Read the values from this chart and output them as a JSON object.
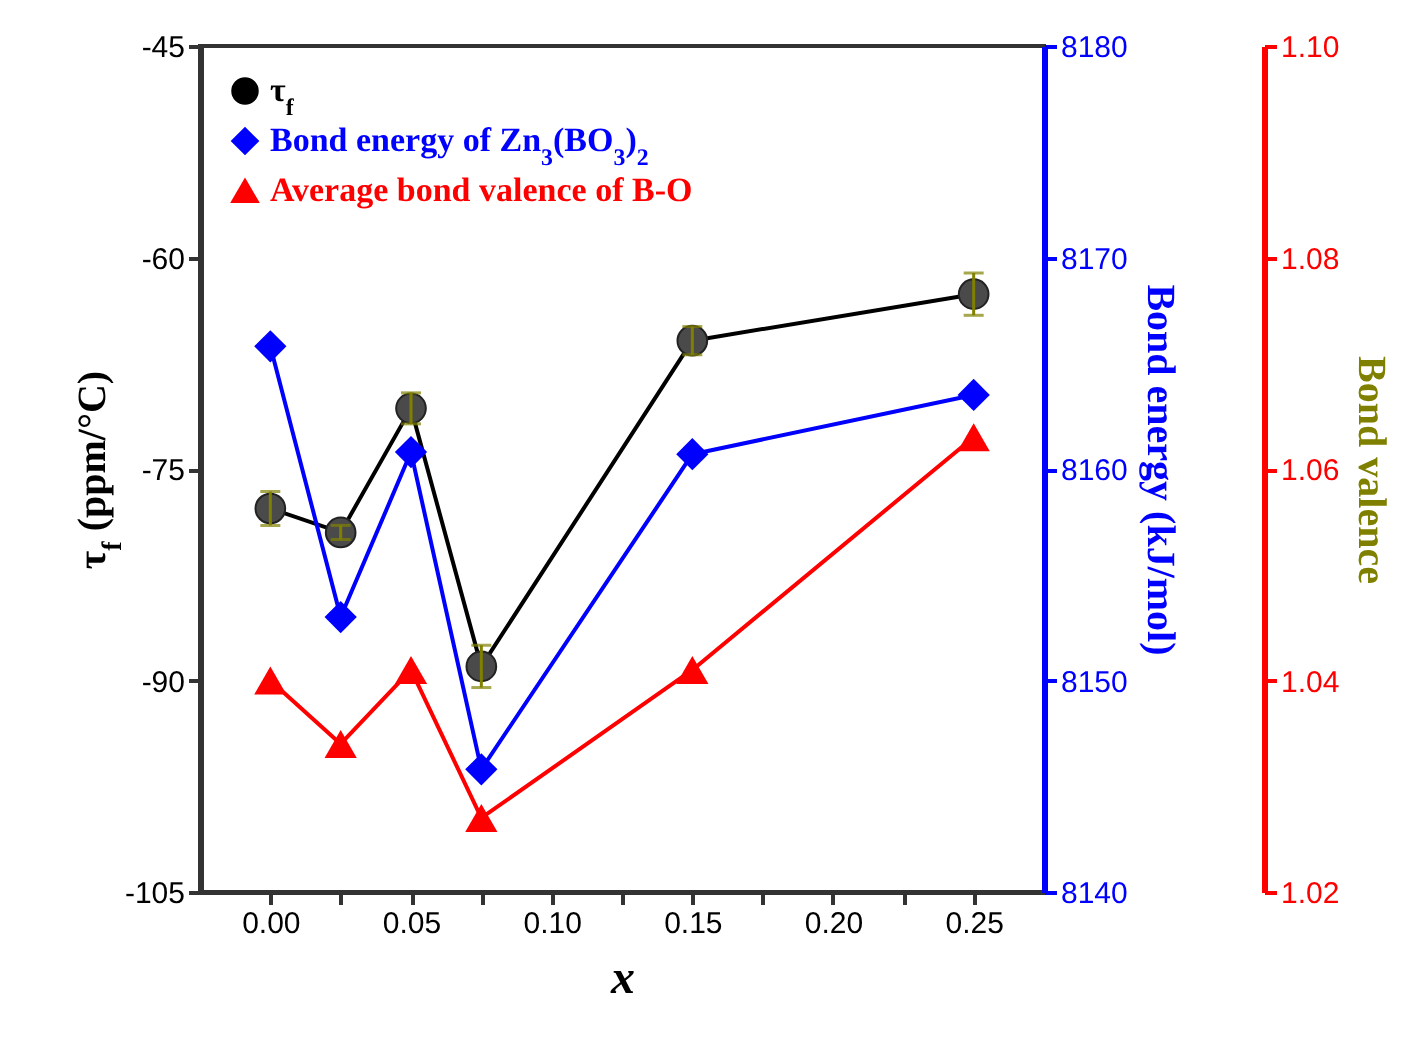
{
  "chart_data": {
    "type": "line",
    "xlabel": "x",
    "ylabel": "τ$_{f}$ (ppm/°C)",
    "y2label": "Bond energy (kJ/mol)",
    "y3label": "Bond valence",
    "x": [
      0,
      0.025,
      0.05,
      0.075,
      0.15,
      0.25
    ],
    "xlim": [
      -0.025,
      0.275
    ],
    "xticks": [
      {
        "value": 0,
        "label": "0.00"
      },
      {
        "value": 0.025,
        "label": null
      },
      {
        "value": 0.05,
        "label": "0.05"
      },
      {
        "value": 0.075,
        "label": null
      },
      {
        "value": 0.1,
        "label": "0.10"
      },
      {
        "value": 0.125,
        "label": null
      },
      {
        "value": 0.15,
        "label": "0.15"
      },
      {
        "value": 0.175,
        "label": null
      },
      {
        "value": 0.2,
        "label": "0.20"
      },
      {
        "value": 0.225,
        "label": null
      },
      {
        "value": 0.25,
        "label": "0.25"
      }
    ],
    "ylim": [
      -105,
      -45
    ],
    "yticks": [
      -105,
      -90,
      -75,
      -60,
      -45
    ],
    "y2lim": [
      8140,
      8180
    ],
    "y2ticks": [
      8140,
      8150,
      8160,
      8170,
      8180
    ],
    "y3lim": [
      1.02,
      1.1
    ],
    "y3ticks": [
      {
        "value": 1.02,
        "label": "1.02"
      },
      {
        "value": 1.04,
        "label": "1.04"
      },
      {
        "value": 1.06,
        "label": "1.06"
      },
      {
        "value": 1.08,
        "label": "1.08"
      },
      {
        "value": 1.1,
        "label": "1.10"
      }
    ],
    "legend": "top left",
    "grid": false,
    "line_style": "solid",
    "series": [
      {
        "name": "τ$_{f}$",
        "color": "#000000",
        "marker": "circle",
        "values": [
          -77.8,
          -79.5,
          -70.7,
          -89.0,
          -65.9,
          -62.6
        ],
        "errors": [
          1.2,
          0.5,
          1.1,
          1.5,
          1.0,
          1.5
        ]
      },
      {
        "name": "Bond energy of Zn$_{3}$(BO$_{3}$)$_{2}$",
        "color": "#0000ff",
        "marker": "diamond",
        "axis": "y2",
        "values": [
          8165.8,
          8153.0,
          8160.8,
          8145.8,
          8160.7,
          8163.5
        ]
      },
      {
        "name": "Average bond valence of B-O",
        "color": "#ff0000",
        "marker": "triangle",
        "axis": "y3",
        "values": [
          1.04,
          1.034,
          1.041,
          1.027,
          1.041,
          1.063
        ]
      }
    ]
  }
}
